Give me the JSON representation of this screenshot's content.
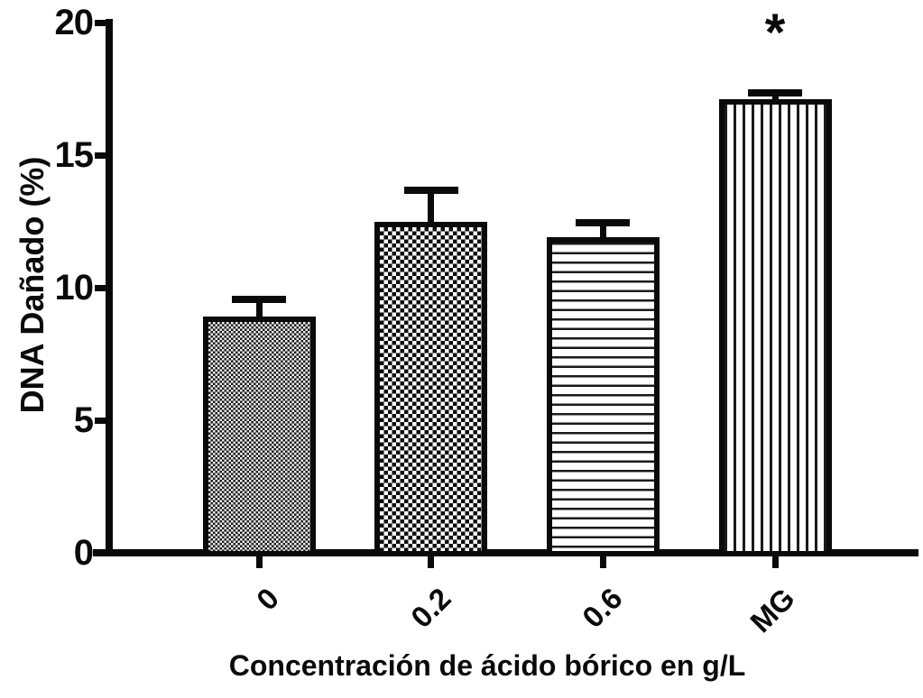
{
  "chart_data": {
    "type": "bar",
    "title": "",
    "xlabel": "Concentración de ácido bórico en g/L",
    "ylabel": "DNA Dañado (%)",
    "categories": [
      "0",
      "0.2",
      "0.6",
      "MG"
    ],
    "values": [
      8.9,
      12.5,
      11.9,
      17.1
    ],
    "errors": [
      0.8,
      1.3,
      0.7,
      0.4
    ],
    "error_bars": "upper only, T-caps",
    "ylim": [
      0,
      20
    ],
    "yticks": [
      0,
      5,
      10,
      15,
      20
    ],
    "grid": "off",
    "legend": "none",
    "bar_patterns": [
      "fine-checkerboard",
      "coarse-checkerboard",
      "horizontal-stripes",
      "vertical-stripes"
    ],
    "annotations": [
      {
        "text": "*",
        "category": "MG",
        "position": "above error bar"
      }
    ],
    "ink_color": "#0a0a0a",
    "background_color": "#ffffff"
  }
}
